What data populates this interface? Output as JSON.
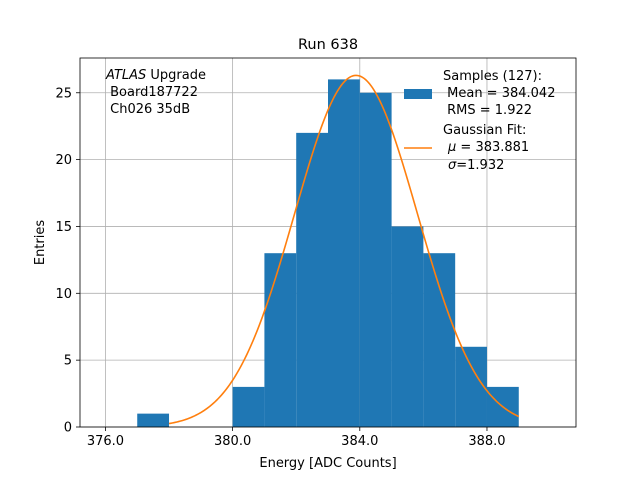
{
  "chart_data": {
    "type": "bar",
    "title": "Run 638",
    "xlabel": "Energy [ADC Counts]",
    "ylabel": "Entries",
    "xlim": [
      375.2,
      390.8
    ],
    "ylim": [
      0,
      27.6
    ],
    "grid": true,
    "bin_width": 1,
    "bins": [
      {
        "left": 377,
        "count": 1
      },
      {
        "left": 380,
        "count": 3
      },
      {
        "left": 381,
        "count": 13
      },
      {
        "left": 382,
        "count": 22
      },
      {
        "left": 383,
        "count": 26
      },
      {
        "left": 384,
        "count": 25
      },
      {
        "left": 385,
        "count": 15
      },
      {
        "left": 386,
        "count": 13
      },
      {
        "left": 387,
        "count": 6
      },
      {
        "left": 388,
        "count": 3
      }
    ],
    "x_ticks": [
      376,
      380,
      384,
      388
    ],
    "x_tick_labels": [
      "376.0",
      "380.0",
      "384.0",
      "388.0"
    ],
    "y_ticks": [
      0,
      5,
      10,
      15,
      20,
      25
    ],
    "y_tick_labels": [
      "0",
      "5",
      "10",
      "15",
      "20",
      "25"
    ],
    "fit": {
      "name": "Gaussian Fit",
      "mu": 383.881,
      "sigma": 1.932,
      "amplitude": 26.3,
      "x_range": [
        378.0,
        389.0
      ]
    },
    "annotation": {
      "italic_part": "ATLAS",
      "line1_rest": " Upgrade",
      "line2": " Board187722",
      "line3": " Ch026 35dB"
    },
    "legend": {
      "position": "top-right",
      "samples_line1": "Samples (127):",
      "samples_line2": " Mean = 384.042",
      "samples_line3": " RMS = 1.922",
      "fit_line1": "Gaussian Fit:",
      "fit_line2_symbol": "μ",
      "fit_line2_rest": " = 383.881",
      "fit_line3_symbol": "σ",
      "fit_line3_rest": "=1.932"
    },
    "colors": {
      "bar": "#1f77b4",
      "fit_line": "#ff7f0e",
      "grid": "#b0b0b0"
    }
  }
}
